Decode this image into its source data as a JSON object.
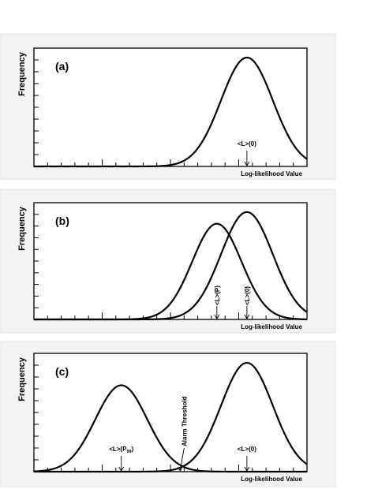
{
  "chart_data": [
    {
      "type": "line",
      "panel_label": "(a)",
      "ylabel": "Frequency",
      "xlabel": "Log-likelihood Value",
      "x_ticks": 19,
      "y_ticks": 9,
      "curves": [
        {
          "center": 0.78,
          "width": 0.095,
          "peak": 0.92
        }
      ],
      "annotations": [
        {
          "text": "<L>(0)",
          "sub": "",
          "x": 0.78,
          "orientation": "horizontal"
        }
      ]
    },
    {
      "type": "line",
      "panel_label": "(b)",
      "ylabel": "Frequency",
      "xlabel": "Log-likelihood Value",
      "x_ticks": 19,
      "y_ticks": 9,
      "curves": [
        {
          "center": 0.67,
          "width": 0.09,
          "peak": 0.82
        },
        {
          "center": 0.78,
          "width": 0.095,
          "peak": 0.92
        }
      ],
      "annotations": [
        {
          "text": "<L>(P)",
          "sub": "",
          "x": 0.67,
          "orientation": "vertical"
        },
        {
          "text": "<L>(0)",
          "sub": "",
          "x": 0.78,
          "orientation": "vertical"
        }
      ]
    },
    {
      "type": "line",
      "panel_label": "(c)",
      "ylabel": "Frequency",
      "xlabel": "Log-likelihood Value",
      "x_ticks": 19,
      "y_ticks": 9,
      "curves": [
        {
          "center": 0.32,
          "width": 0.095,
          "peak": 0.73
        },
        {
          "center": 0.78,
          "width": 0.095,
          "peak": 0.92
        }
      ],
      "annotations": [
        {
          "text": "<L>(P",
          "sub": "99",
          "close": ")",
          "x": 0.32,
          "orientation": "horizontal"
        },
        {
          "text": "<L>(0)",
          "sub": "",
          "x": 0.78,
          "orientation": "horizontal"
        },
        {
          "text": "Alarm Threshold",
          "sub": "",
          "x": 0.55,
          "orientation": "vertical"
        }
      ]
    }
  ]
}
